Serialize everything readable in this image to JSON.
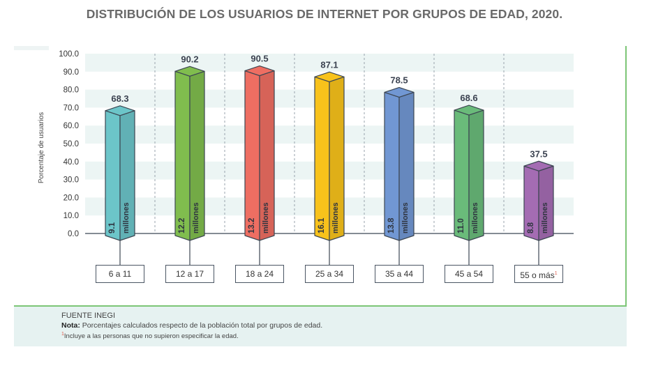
{
  "title": "DISTRIBUCIÓN DE LOS USUARIOS DE INTERNET POR GRUPOS DE EDAD, 2020.",
  "footer": {
    "source": "FUENTE INEGI",
    "note_label": "Nota:",
    "note_text": " Porcentajes calculados respecto de la población total por grupos de edad.",
    "footnote_mark": "1",
    "footnote_text": "Incluye a las personas que no supieron especificar la edad."
  },
  "chart_data": {
    "type": "bar",
    "title": "DISTRIBUCIÓN DE LOS USUARIOS DE INTERNET POR GRUPOS DE EDAD, 2020.",
    "xlabel": "",
    "ylabel": "Porcentaje de usuarios",
    "ylim": [
      0,
      100
    ],
    "yticks": [
      "0.0",
      "10.0",
      "20.0",
      "30.0",
      "40.0",
      "50.0",
      "60.0",
      "70.0",
      "80.0",
      "90.0",
      "100.0"
    ],
    "categories": [
      "6 a 11",
      "12 a 17",
      "18 a 24",
      "25 a 34",
      "35 a 44",
      "45 a 54",
      "55 o más"
    ],
    "category_footnote": [
      "",
      "",
      "",
      "",
      "",
      "",
      "1"
    ],
    "values": [
      68.3,
      90.2,
      90.5,
      87.1,
      78.5,
      68.6,
      37.5
    ],
    "value_labels": [
      "68.3",
      "90.2",
      "90.5",
      "87.1",
      "78.5",
      "68.6",
      "37.5"
    ],
    "users_millions": [
      "9.1",
      "12.2",
      "13.2",
      "16.1",
      "13.8",
      "11.0",
      "8.8"
    ],
    "users_unit": "millones",
    "colors": [
      "#6cc5c9",
      "#80bd4e",
      "#ee6e62",
      "#f8c21b",
      "#7197d3",
      "#6abb7a",
      "#a46cb3"
    ],
    "grid": "alternating horizontal bands",
    "legend": "none"
  }
}
